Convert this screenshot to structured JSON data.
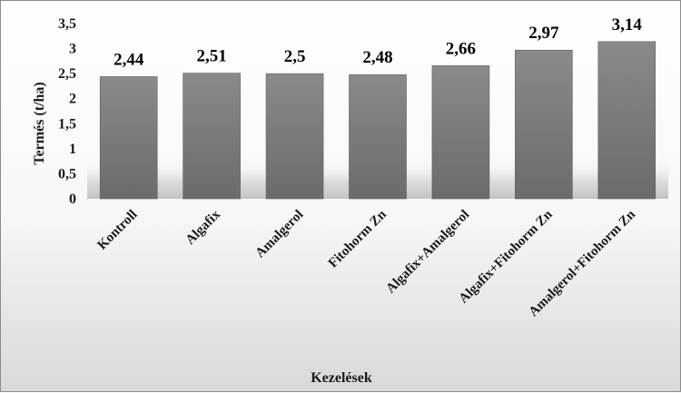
{
  "chart_data": {
    "type": "bar",
    "categories": [
      "Kontroll",
      "Algafix",
      "Amalgerol",
      "Fitohorm Zn",
      "Algafix+Amalgerol",
      "Algafix+Fitohorm Zn",
      "Amalgerol+Fitohorm Zn"
    ],
    "values": [
      2.44,
      2.51,
      2.5,
      2.48,
      2.66,
      2.97,
      3.14
    ],
    "data_labels": [
      "2,44",
      "2,51",
      "2,5",
      "2,48",
      "2,66",
      "2,97",
      "3,14"
    ],
    "y_ticks": [
      "0",
      "0,5",
      "1",
      "1,5",
      "2",
      "2,5",
      "3",
      "3,5"
    ],
    "ylim": [
      0,
      3.5
    ],
    "xlabel": "Kezelések",
    "ylabel": "Termés (t/ha)",
    "grid": false,
    "legend": "none",
    "bar_color": "#7a7a7a"
  }
}
